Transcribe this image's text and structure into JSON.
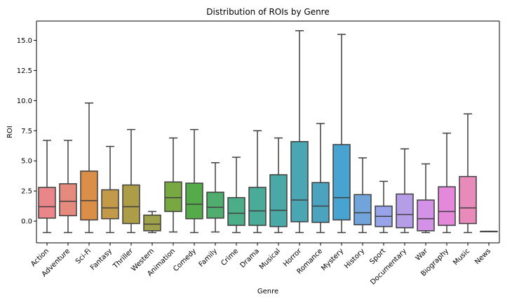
{
  "chart_data": {
    "type": "box",
    "title": "Distribution of ROIs by Genre",
    "xlabel": "Genre",
    "ylabel": "ROI",
    "ylim": [
      -1.8,
      16.6
    ],
    "yticks": [
      0.0,
      2.5,
      5.0,
      7.5,
      10.0,
      12.5,
      15.0
    ],
    "ytick_labels": [
      "0.0",
      "2.5",
      "5.0",
      "7.5",
      "10.0",
      "12.5",
      "15.0"
    ],
    "grid": false,
    "legend": "none",
    "categories": [
      "Action",
      "Adventure",
      "Sci-Fi",
      "Fantasy",
      "Thriller",
      "Western",
      "Animation",
      "Comedy",
      "Family",
      "Crime",
      "Drama",
      "Musical",
      "Horror",
      "Romance",
      "Mystery",
      "History",
      "Sport",
      "Documentary",
      "War",
      "Biography",
      "Music",
      "News"
    ],
    "boxes": [
      {
        "whisker_low": -0.95,
        "q1": 0.25,
        "median": 1.2,
        "q3": 2.8,
        "whisker_high": 6.7,
        "color": "#e8868a"
      },
      {
        "whisker_low": -0.95,
        "q1": 0.45,
        "median": 1.65,
        "q3": 3.1,
        "whisker_high": 6.7,
        "color": "#e58a7d"
      },
      {
        "whisker_low": -0.95,
        "q1": 0.1,
        "median": 1.7,
        "q3": 4.15,
        "whisker_high": 9.8,
        "color": "#d98f47"
      },
      {
        "whisker_low": -0.95,
        "q1": 0.2,
        "median": 1.1,
        "q3": 2.6,
        "whisker_high": 6.2,
        "color": "#c39a49"
      },
      {
        "whisker_low": -0.95,
        "q1": -0.2,
        "median": 1.2,
        "q3": 3.0,
        "whisker_high": 7.6,
        "color": "#ad9d48"
      },
      {
        "whisker_low": -0.95,
        "q1": -0.8,
        "median": -0.25,
        "q3": 0.5,
        "whisker_high": 0.8,
        "color": "#9fa14a"
      },
      {
        "whisker_low": -0.9,
        "q1": 0.8,
        "median": 1.95,
        "q3": 3.25,
        "whisker_high": 6.9,
        "color": "#79a842"
      },
      {
        "whisker_low": -0.95,
        "q1": 0.2,
        "median": 1.4,
        "q3": 3.15,
        "whisker_high": 7.6,
        "color": "#55ab4a"
      },
      {
        "whisker_low": -0.9,
        "q1": 0.25,
        "median": 1.15,
        "q3": 2.4,
        "whisker_high": 4.85,
        "color": "#4fad6e"
      },
      {
        "whisker_low": -0.95,
        "q1": -0.35,
        "median": 0.65,
        "q3": 1.95,
        "whisker_high": 5.3,
        "color": "#4cae88"
      },
      {
        "whisker_low": -0.95,
        "q1": -0.35,
        "median": 0.85,
        "q3": 2.8,
        "whisker_high": 7.5,
        "color": "#4aab98"
      },
      {
        "whisker_low": -0.95,
        "q1": -0.45,
        "median": 0.9,
        "q3": 3.85,
        "whisker_high": 6.9,
        "color": "#4aa9a6"
      },
      {
        "whisker_low": -0.95,
        "q1": -0.05,
        "median": 1.75,
        "q3": 6.6,
        "whisker_high": 15.8,
        "color": "#4aa6b2"
      },
      {
        "whisker_low": -0.95,
        "q1": -0.1,
        "median": 1.25,
        "q3": 3.2,
        "whisker_high": 8.1,
        "color": "#4ba3c0"
      },
      {
        "whisker_low": -0.95,
        "q1": 0.1,
        "median": 1.95,
        "q3": 6.35,
        "whisker_high": 15.5,
        "color": "#49a3d1"
      },
      {
        "whisker_low": -0.95,
        "q1": -0.3,
        "median": 0.7,
        "q3": 2.2,
        "whisker_high": 5.25,
        "color": "#72a4dc"
      },
      {
        "whisker_low": -0.95,
        "q1": -0.45,
        "median": 0.4,
        "q3": 1.25,
        "whisker_high": 3.3,
        "color": "#98a4ea"
      },
      {
        "whisker_low": -0.95,
        "q1": -0.55,
        "median": 0.55,
        "q3": 2.25,
        "whisker_high": 6.0,
        "color": "#b59de8"
      },
      {
        "whisker_low": -0.95,
        "q1": -0.8,
        "median": 0.2,
        "q3": 1.75,
        "whisker_high": 4.75,
        "color": "#d391e8"
      },
      {
        "whisker_low": -0.95,
        "q1": -0.35,
        "median": 0.8,
        "q3": 2.85,
        "whisker_high": 7.3,
        "color": "#e388db"
      },
      {
        "whisker_low": -0.95,
        "q1": -0.2,
        "median": 1.1,
        "q3": 3.7,
        "whisker_high": 8.9,
        "color": "#e88bbb"
      },
      {
        "whisker_low": -0.85,
        "q1": -0.85,
        "median": -0.85,
        "q3": -0.85,
        "whisker_high": -0.85,
        "color": "#e8a0b0"
      }
    ]
  }
}
